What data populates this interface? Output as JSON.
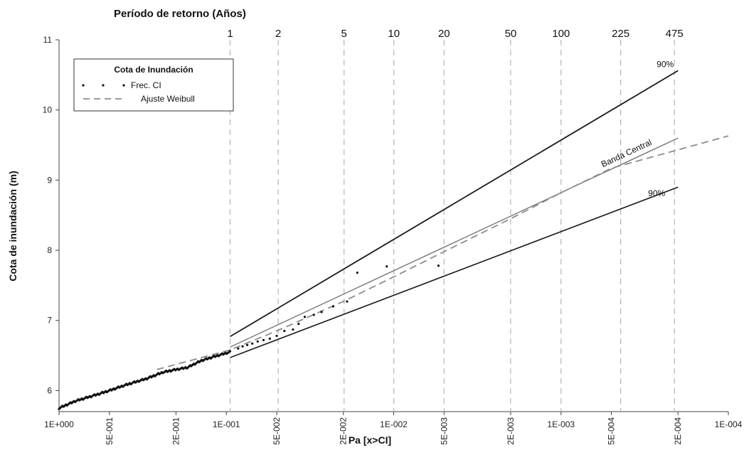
{
  "chart_data": {
    "type": "scatter",
    "top_title": "Período de retorno (Años)",
    "xlabel": "Pa [x>CI]",
    "ylabel": "Cota de inundación (m)",
    "x_scale": "log",
    "x_reversed": true,
    "xlim": [
      1,
      0.0001
    ],
    "ylim": [
      5.7,
      11
    ],
    "y_ticks": [
      {
        "value": 6,
        "label": "6"
      },
      {
        "value": 7,
        "label": "7"
      },
      {
        "value": 8,
        "label": "8"
      },
      {
        "value": 9,
        "label": "9"
      },
      {
        "value": 10,
        "label": "10"
      },
      {
        "value": 11,
        "label": "11"
      }
    ],
    "x_ticks": [
      {
        "value": 1,
        "label": "1E+000",
        "rotated": false
      },
      {
        "value": 0.5,
        "label": "5E-001",
        "rotated": true
      },
      {
        "value": 0.2,
        "label": "2E-001",
        "rotated": true
      },
      {
        "value": 0.1,
        "label": "1E-001",
        "rotated": false
      },
      {
        "value": 0.05,
        "label": "5E-002",
        "rotated": true
      },
      {
        "value": 0.02,
        "label": "2E-002",
        "rotated": true
      },
      {
        "value": 0.01,
        "label": "1E-002",
        "rotated": false
      },
      {
        "value": 0.005,
        "label": "5E-003",
        "rotated": true
      },
      {
        "value": 0.002,
        "label": "2E-003",
        "rotated": true
      },
      {
        "value": 0.001,
        "label": "1E-003",
        "rotated": false
      },
      {
        "value": 0.0005,
        "label": "5E-004",
        "rotated": true
      },
      {
        "value": 0.0002,
        "label": "2E-004",
        "rotated": true
      },
      {
        "value": 0.0001,
        "label": "1E-004",
        "rotated": false
      }
    ],
    "return_periods": [
      {
        "label": "1",
        "x": 0.095
      },
      {
        "label": "2",
        "x": 0.049
      },
      {
        "label": "5",
        "x": 0.0198
      },
      {
        "label": "10",
        "x": 0.00998
      },
      {
        "label": "20",
        "x": 0.005
      },
      {
        "label": "50",
        "x": 0.002
      },
      {
        "label": "100",
        "x": 0.001
      },
      {
        "label": "225",
        "x": 0.00044
      },
      {
        "label": "475",
        "x": 0.00021
      }
    ],
    "lines": [
      {
        "name": "90%",
        "style": "solid",
        "color": "#1a1a1a",
        "width": 1.8,
        "points": [
          [
            0.095,
            6.77
          ],
          [
            0.0002,
            10.56
          ]
        ],
        "annotation_position": "above-end"
      },
      {
        "name": "Banda Central",
        "style": "solid",
        "color": "#777777",
        "width": 1.4,
        "points": [
          [
            0.095,
            6.62
          ],
          [
            0.0002,
            9.6
          ]
        ],
        "annotation_position": "above-end-rotated"
      },
      {
        "name": "90%",
        "style": "solid",
        "color": "#1a1a1a",
        "width": 1.6,
        "points": [
          [
            0.095,
            6.47
          ],
          [
            0.0002,
            8.9
          ]
        ],
        "annotation_position": "below-end"
      },
      {
        "name": "Ajuste Weibull",
        "style": "dashed",
        "color": "#8c8c8c",
        "width": 1.8,
        "points": [
          [
            0.26,
            6.3
          ],
          [
            0.095,
            6.58
          ],
          [
            0.05,
            6.85
          ],
          [
            0.02,
            7.27
          ],
          [
            0.01,
            7.62
          ],
          [
            0.005,
            7.98
          ],
          [
            0.002,
            8.45
          ],
          [
            0.001,
            8.82
          ],
          [
            0.0005,
            9.17
          ],
          [
            0.0001,
            9.63
          ]
        ]
      }
    ],
    "observed_tail": [
      [
        0.085,
        6.6
      ],
      [
        0.08,
        6.63
      ],
      [
        0.075,
        6.65
      ],
      [
        0.07,
        6.67
      ],
      [
        0.065,
        6.7
      ],
      [
        0.06,
        6.72
      ],
      [
        0.055,
        6.74
      ],
      [
        0.05,
        6.78
      ],
      [
        0.045,
        6.85
      ],
      [
        0.04,
        6.87
      ],
      [
        0.037,
        6.95
      ],
      [
        0.034,
        7.05
      ],
      [
        0.03,
        7.08
      ],
      [
        0.027,
        7.12
      ],
      [
        0.023,
        7.2
      ],
      [
        0.019,
        7.27
      ],
      [
        0.0165,
        7.68
      ],
      [
        0.011,
        7.77
      ],
      [
        0.0054,
        7.78
      ]
    ],
    "legend": {
      "title": "Cota de Inundación",
      "entries": [
        {
          "label": "Frec. CI",
          "marker": "dots"
        },
        {
          "label": "Ajuste Weibull",
          "marker": "dashed-line"
        }
      ],
      "position": "top-left"
    },
    "annotations": [
      "90%",
      "Banda Central",
      "90%"
    ],
    "grid": "dashed vertical lines at return periods"
  }
}
